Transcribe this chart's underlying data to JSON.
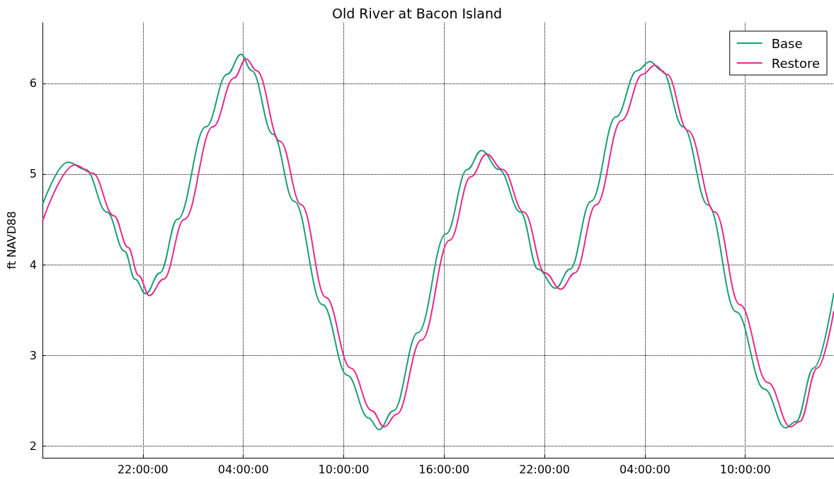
{
  "chart_data": {
    "type": "line",
    "title": "Old River at Bacon Island",
    "ylabel": "ft NAVD88",
    "xlim": [
      "2000-01-01T16:00",
      "2000-01-03T15:18"
    ],
    "xticks": [
      {
        "value": "2000-01-01T22:00",
        "label": "22:00:00"
      },
      {
        "value": "2000-01-02T04:00",
        "label": "04:00:00"
      },
      {
        "value": "2000-01-02T10:00",
        "label": "10:00:00"
      },
      {
        "value": "2000-01-02T16:00",
        "label": "16:00:00"
      },
      {
        "value": "2000-01-02T22:00",
        "label": "22:00:00"
      },
      {
        "value": "2000-01-03T04:00",
        "label": "04:00:00"
      },
      {
        "value": "2000-01-03T10:00",
        "label": "10:00:00"
      }
    ],
    "ylim": [
      1.87,
      6.67
    ],
    "yticks": [
      2,
      3,
      4,
      5,
      6
    ],
    "grid": true,
    "legend": "top right",
    "marker": "none",
    "line_style": "solid",
    "series": [
      {
        "name": "Base",
        "color": "#1b9e77",
        "x": [
          "2000-01-01T16:00",
          "2000-01-01T17:31",
          "2000-01-01T18:35",
          "2000-01-01T19:51",
          "2000-01-01T20:54",
          "2000-01-01T21:32",
          "2000-01-01T22:10",
          "2000-01-01T23:01",
          "2000-01-02T00:04",
          "2000-01-02T01:46",
          "2000-01-02T03:02",
          "2000-01-02T03:52",
          "2000-01-02T04:30",
          "2000-01-02T05:46",
          "2000-01-02T07:02",
          "2000-01-02T08:44",
          "2000-01-02T10:13",
          "2000-01-02T11:29",
          "2000-01-02T12:07",
          "2000-01-02T12:58",
          "2000-01-02T14:26",
          "2000-01-02T16:07",
          "2000-01-02T17:23",
          "2000-01-02T18:14",
          "2000-01-02T19:17",
          "2000-01-02T20:34",
          "2000-01-02T21:37",
          "2000-01-02T22:40",
          "2000-01-02T23:31",
          "2000-01-03T00:47",
          "2000-01-03T02:16",
          "2000-01-03T03:32",
          "2000-01-03T04:18",
          "2000-01-03T05:01",
          "2000-01-03T06:17",
          "2000-01-03T07:46",
          "2000-01-03T09:27",
          "2000-01-03T11:08",
          "2000-01-03T12:24",
          "2000-01-03T13:02",
          "2000-01-03T14:05",
          "2000-01-03T15:17"
        ],
        "values": [
          4.66,
          5.13,
          5.05,
          4.58,
          4.15,
          3.84,
          3.68,
          3.91,
          4.5,
          5.52,
          6.1,
          6.32,
          6.14,
          5.44,
          4.7,
          3.56,
          2.78,
          2.31,
          2.18,
          2.39,
          3.25,
          4.34,
          5.05,
          5.26,
          5.05,
          4.58,
          3.95,
          3.74,
          3.95,
          4.7,
          5.63,
          6.14,
          6.24,
          6.14,
          5.52,
          4.66,
          3.48,
          2.63,
          2.2,
          2.27,
          2.86,
          3.68
        ]
      },
      {
        "name": "Restore",
        "color": "#e7298a",
        "x": [
          "2000-01-01T16:00",
          "2000-01-01T17:56",
          "2000-01-01T19:00",
          "2000-01-01T20:16",
          "2000-01-01T21:07",
          "2000-01-01T21:45",
          "2000-01-01T22:23",
          "2000-01-01T23:14",
          "2000-01-02T00:29",
          "2000-01-02T02:11",
          "2000-01-02T03:27",
          "2000-01-02T04:10",
          "2000-01-02T04:48",
          "2000-01-02T06:12",
          "2000-01-02T07:28",
          "2000-01-02T08:56",
          "2000-01-02T10:25",
          "2000-01-02T11:41",
          "2000-01-02T12:25",
          "2000-01-02T13:10",
          "2000-01-02T14:39",
          "2000-01-02T16:20",
          "2000-01-02T17:36",
          "2000-01-02T18:32",
          "2000-01-02T19:30",
          "2000-01-02T20:46",
          "2000-01-02T22:02",
          "2000-01-02T22:58",
          "2000-01-02T23:49",
          "2000-01-03T01:05",
          "2000-01-03T02:36",
          "2000-01-03T03:52",
          "2000-01-03T04:35",
          "2000-01-03T05:19",
          "2000-01-03T06:34",
          "2000-01-03T08:11",
          "2000-01-03T09:40",
          "2000-01-03T11:21",
          "2000-01-03T12:42",
          "2000-01-03T13:15",
          "2000-01-03T14:18",
          "2000-01-03T15:17"
        ],
        "values": [
          4.48,
          5.1,
          5.01,
          4.54,
          4.19,
          3.88,
          3.66,
          3.84,
          4.5,
          5.52,
          6.06,
          6.27,
          6.14,
          5.36,
          4.66,
          3.64,
          2.86,
          2.39,
          2.21,
          2.35,
          3.17,
          4.27,
          4.97,
          5.22,
          5.05,
          4.58,
          3.91,
          3.73,
          3.91,
          4.66,
          5.59,
          6.1,
          6.2,
          6.1,
          5.48,
          4.58,
          3.56,
          2.7,
          2.21,
          2.27,
          2.86,
          3.48
        ]
      }
    ]
  }
}
